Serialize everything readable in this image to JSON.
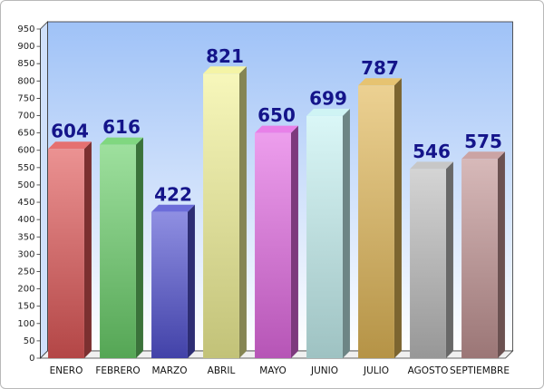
{
  "chart_data": {
    "type": "bar",
    "categories": [
      "ENERO",
      "FEBRERO",
      "MARZO",
      "ABRIL",
      "MAYO",
      "JUNIO",
      "JULIO",
      "AGOSTO",
      "SEPTIEMBRE"
    ],
    "values": [
      604,
      616,
      422,
      821,
      650,
      699,
      787,
      546,
      575
    ],
    "colors": [
      "#e05858",
      "#6ad06a",
      "#5252d2",
      "#f2f296",
      "#e46ae4",
      "#c6f2f2",
      "#e2b858",
      "#bdbdbd",
      "#c29494"
    ],
    "ylim": [
      0,
      950
    ],
    "yticks": [
      0,
      50,
      100,
      150,
      200,
      250,
      300,
      350,
      400,
      450,
      500,
      550,
      600,
      650,
      700,
      750,
      800,
      850,
      900,
      950
    ],
    "grid": false
  }
}
